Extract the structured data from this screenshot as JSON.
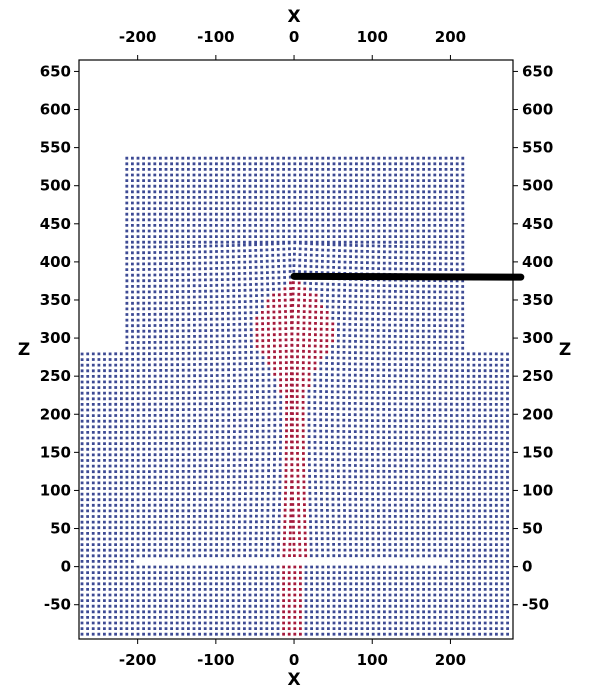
{
  "chart_data": {
    "type": "scatter",
    "title": "",
    "xlabel": "X",
    "ylabel": "Z",
    "xlim": [
      -275,
      280
    ],
    "ylim": [
      -95,
      665
    ],
    "x_ticks": [
      -200,
      -100,
      0,
      100,
      200
    ],
    "y_ticks": [
      -50,
      0,
      50,
      100,
      150,
      200,
      250,
      300,
      350,
      400,
      450,
      500,
      550,
      600,
      650
    ],
    "x_tick_labels": [
      "-200",
      "-100",
      "0",
      "100",
      "200"
    ],
    "y_tick_labels": [
      "-50",
      "0",
      "50",
      "100",
      "150",
      "200",
      "250",
      "300",
      "350",
      "400",
      "450",
      "500",
      "550",
      "600",
      "650"
    ],
    "grid": false,
    "colors": {
      "matrix": "#3d4a94",
      "inclusion": "#a51a3c",
      "crack": "#000000",
      "frame": "#000000"
    },
    "regions": {
      "lower_block": {
        "x": [
          -275,
          280
        ],
        "z": [
          -95,
          285
        ]
      },
      "upper_block": {
        "x": [
          -220,
          220
        ],
        "z": [
          285,
          540
        ]
      },
      "inner_gap_z": 5,
      "inner_gap_x": [
        -200,
        200
      ],
      "stem_x": [
        -15,
        15
      ],
      "stem_z": [
        -95,
        0
      ],
      "plume_base_z": 0,
      "plume_top_z": 375,
      "plume_max_half_width": 55
    },
    "crack": {
      "x": [
        0,
        290
      ],
      "z": [
        385,
        380
      ]
    }
  }
}
